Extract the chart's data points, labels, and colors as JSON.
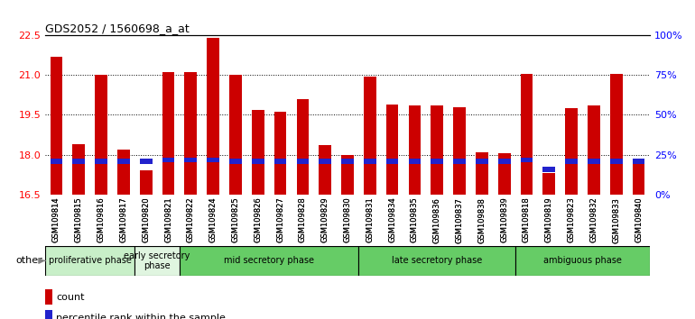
{
  "title": "GDS2052 / 1560698_a_at",
  "samples": [
    "GSM109814",
    "GSM109815",
    "GSM109816",
    "GSM109817",
    "GSM109820",
    "GSM109821",
    "GSM109822",
    "GSM109824",
    "GSM109825",
    "GSM109826",
    "GSM109827",
    "GSM109828",
    "GSM109829",
    "GSM109830",
    "GSM109831",
    "GSM109834",
    "GSM109835",
    "GSM109836",
    "GSM109837",
    "GSM109838",
    "GSM109839",
    "GSM109818",
    "GSM109819",
    "GSM109823",
    "GSM109832",
    "GSM109833",
    "GSM109840"
  ],
  "count_values": [
    21.7,
    18.4,
    21.0,
    18.2,
    17.4,
    21.1,
    21.1,
    22.4,
    21.0,
    19.7,
    19.6,
    20.1,
    18.35,
    18.0,
    20.95,
    19.9,
    19.85,
    19.85,
    19.8,
    18.1,
    18.05,
    21.05,
    17.3,
    19.75,
    19.85,
    21.05,
    17.85
  ],
  "percentile_values": [
    17.75,
    17.75,
    17.75,
    17.75,
    17.75,
    17.8,
    17.8,
    17.8,
    17.75,
    17.75,
    17.75,
    17.75,
    17.75,
    17.75,
    17.75,
    17.75,
    17.75,
    17.75,
    17.75,
    17.75,
    17.75,
    17.8,
    17.45,
    17.75,
    17.75,
    17.75,
    17.75
  ],
  "percentile_heights": [
    0.18,
    0.18,
    0.18,
    0.18,
    0.18,
    0.18,
    0.18,
    0.18,
    0.18,
    0.18,
    0.18,
    0.18,
    0.18,
    0.18,
    0.18,
    0.18,
    0.18,
    0.18,
    0.18,
    0.18,
    0.18,
    0.18,
    0.18,
    0.18,
    0.18,
    0.18,
    0.18
  ],
  "bar_base": 16.5,
  "phases": [
    {
      "label": "proliferative phase",
      "start": 0,
      "end": 4,
      "color": "#c8efc8"
    },
    {
      "label": "early secretory\nphase",
      "start": 4,
      "end": 6,
      "color": "#e0f5e0"
    },
    {
      "label": "mid secretory phase",
      "start": 6,
      "end": 14,
      "color": "#66cc66"
    },
    {
      "label": "late secretory phase",
      "start": 14,
      "end": 21,
      "color": "#66cc66"
    },
    {
      "label": "ambiguous phase",
      "start": 21,
      "end": 27,
      "color": "#66cc66"
    }
  ],
  "ylim_left": [
    16.5,
    22.5
  ],
  "yticks_left": [
    16.5,
    18.0,
    19.5,
    21.0,
    22.5
  ],
  "ylim_right": [
    0,
    100
  ],
  "yticks_right": [
    0,
    25,
    50,
    75,
    100
  ],
  "count_color": "#cc0000",
  "percentile_color": "#2222cc",
  "bar_width": 0.55,
  "fig_bg": "#ffffff",
  "plot_bg": "#ffffff"
}
